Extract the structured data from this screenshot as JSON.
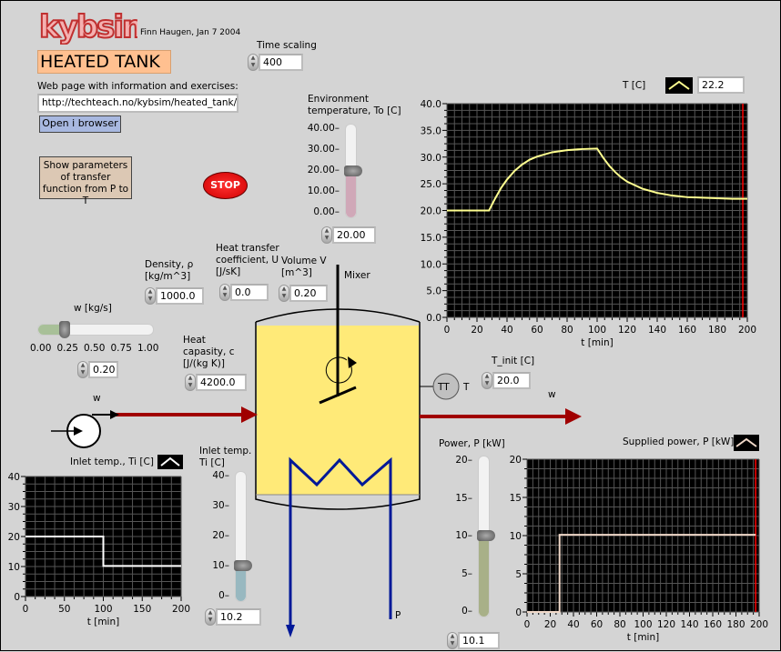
{
  "header": {
    "logo": "kybsim",
    "author": "Finn Haugen, Jan 7 2004",
    "title": "HEATED TANK"
  },
  "time_scaling": {
    "label": "Time scaling",
    "value": "400"
  },
  "web": {
    "label": "Web page with information and exercises:",
    "url": "http://techteach.no/kybsim/heated_tank/",
    "open_button": "Open i browser"
  },
  "show_params_button": "Show parameters of transfer function from P to T",
  "stop_button": "STOP",
  "env_temp": {
    "label": "Environment temperature, To [C]",
    "ticks": [
      "40.00",
      "30.00",
      "20.00",
      "10.00",
      "0.00"
    ],
    "value": "20.00",
    "level": 20,
    "max": 40,
    "fill": "#d0a8b8"
  },
  "density": {
    "label1": "Density, ρ",
    "label2": "[kg/m^3]",
    "value": "1000.0"
  },
  "heat_transfer": {
    "label1": "Heat transfer",
    "label2": "coefficient, U",
    "label3": "[J/sK]",
    "value": "0.0"
  },
  "volume": {
    "label1": "Volume V",
    "label2": "[m^3]",
    "value": "0.20"
  },
  "mixer_label": "Mixer",
  "flow": {
    "label": "w [kg/s]",
    "ticks": [
      "0.00",
      "0.25",
      "0.50",
      "0.75",
      "1.00"
    ],
    "value": "0.20",
    "level": 0.2,
    "fill": "#a8c098"
  },
  "heat_capacity": {
    "label1": "Heat",
    "label2": "capasity, c",
    "label3": "[J/(kg K)]",
    "value": "4200.0"
  },
  "tank": {
    "liquid_color": "#ffea78",
    "inlet_label": "w",
    "outlet_label": "w",
    "coil_label": "P",
    "pipe_color": "#a00000",
    "coil_color": "#001898"
  },
  "transmitter": {
    "tag": "TT",
    "label": "T"
  },
  "t_init": {
    "label": "T_init [C]",
    "value": "20.0"
  },
  "inlet_temp": {
    "label1": "Inlet temp.",
    "label2": "Ti [C]",
    "ticks": [
      "40",
      "30",
      "20",
      "10",
      "0"
    ],
    "value": "10.2",
    "level": 10.2,
    "max": 40,
    "fill": "#98b8c0"
  },
  "power": {
    "label": "Power, P [kW]",
    "ticks": [
      "20",
      "15",
      "10",
      "5",
      "0"
    ],
    "value": "10.1",
    "level": 10.1,
    "max": 20,
    "fill": "#a8b088"
  },
  "chart_data": [
    {
      "id": "temperature",
      "type": "line",
      "legend": "T [C]",
      "legend_value": "22.2",
      "xlabel": "t [min]",
      "ylabel": "",
      "xlim": [
        0,
        200
      ],
      "ylim": [
        0,
        40
      ],
      "xticks": [
        0,
        20,
        40,
        60,
        80,
        100,
        120,
        140,
        160,
        180,
        200
      ],
      "yticks": [
        0,
        5,
        10,
        15,
        20,
        25,
        30,
        35,
        40
      ],
      "grid": true,
      "color": "#ffff90",
      "cursor_x": 197,
      "x": [
        0,
        28,
        32,
        36,
        40,
        45,
        50,
        55,
        60,
        70,
        80,
        90,
        100,
        104,
        108,
        112,
        116,
        120,
        130,
        140,
        150,
        160,
        170,
        180,
        190,
        200
      ],
      "y": [
        20,
        20,
        22.2,
        24.2,
        25.8,
        27.4,
        28.6,
        29.5,
        30.1,
        30.9,
        31.3,
        31.5,
        31.6,
        29.9,
        28.4,
        27.2,
        26.2,
        25.4,
        24.1,
        23.3,
        22.8,
        22.5,
        22.4,
        22.3,
        22.2,
        22.2
      ]
    },
    {
      "id": "inlet_temp",
      "type": "line",
      "legend": "Inlet temp., Ti [C]",
      "xlabel": "t [min]",
      "ylabel": "",
      "xlim": [
        0,
        200
      ],
      "ylim": [
        0,
        40
      ],
      "xticks": [
        0,
        50,
        100,
        150,
        200
      ],
      "yticks": [
        0,
        10,
        20,
        30,
        40
      ],
      "grid": true,
      "color": "#ffffff",
      "x": [
        0,
        100,
        100,
        200
      ],
      "y": [
        20,
        20,
        10.2,
        10.2
      ]
    },
    {
      "id": "power",
      "type": "line",
      "legend": "Supplied power, P [kW]",
      "xlabel": "t [min]",
      "ylabel": "",
      "xlim": [
        0,
        200
      ],
      "ylim": [
        0,
        20
      ],
      "xticks": [
        0,
        20,
        40,
        60,
        80,
        100,
        120,
        140,
        160,
        180,
        200
      ],
      "yticks": [
        0,
        5,
        10,
        15,
        20
      ],
      "grid": true,
      "color": "#f0d8c8",
      "cursor_x": 197,
      "x": [
        0,
        28,
        28,
        197
      ],
      "y": [
        0,
        0,
        10.1,
        10.1
      ]
    }
  ]
}
